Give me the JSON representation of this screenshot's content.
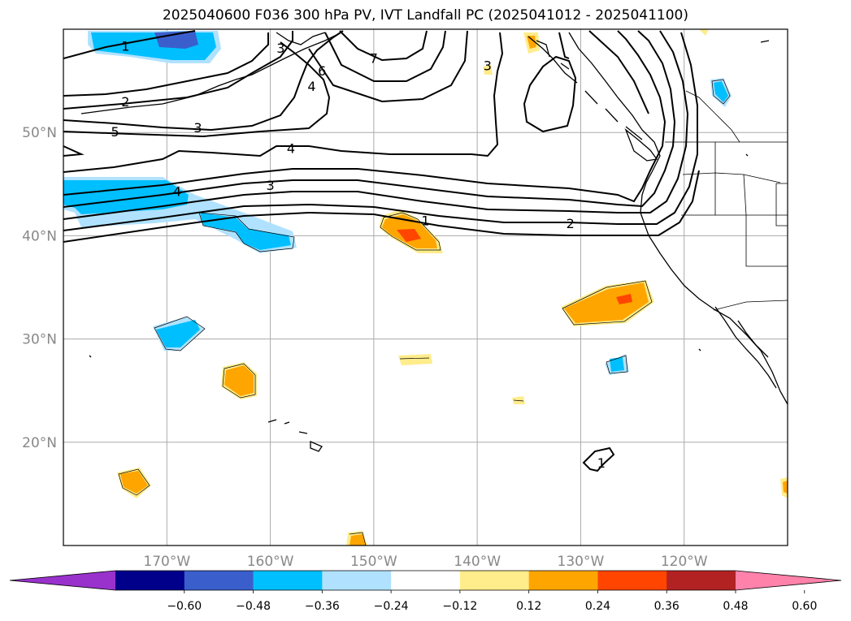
{
  "title": "2025040600 F036 300 hPa PV, IVT Landfall PC (2025041012 - 2025041100)",
  "map": {
    "lon_range": [
      -180,
      -110
    ],
    "lat_range": [
      10,
      60
    ],
    "grid": true,
    "lat_ticks": [
      {
        "value": 50,
        "label": "50°N"
      },
      {
        "value": 40,
        "label": "40°N"
      },
      {
        "value": 30,
        "label": "30°N"
      },
      {
        "value": 20,
        "label": "20°N"
      }
    ],
    "lon_ticks": [
      {
        "value": -170,
        "label": "170°W"
      },
      {
        "value": -160,
        "label": "160°W"
      },
      {
        "value": -150,
        "label": "150°W"
      },
      {
        "value": -140,
        "label": "140°W"
      },
      {
        "value": -130,
        "label": "130°W"
      },
      {
        "value": -120,
        "label": "120°W"
      }
    ]
  },
  "pv_contour_labels": [
    {
      "text": "1",
      "lon": -174,
      "lat": 58.4
    },
    {
      "text": "2",
      "lon": -174,
      "lat": 53.0
    },
    {
      "text": "5",
      "lon": -175,
      "lat": 50.1
    },
    {
      "text": "3",
      "lon": -167,
      "lat": 50.5
    },
    {
      "text": "4",
      "lon": -158,
      "lat": 48.5
    },
    {
      "text": "4",
      "lon": -169,
      "lat": 44.3
    },
    {
      "text": "3",
      "lon": -160,
      "lat": 44.9
    },
    {
      "text": "1",
      "lon": -145,
      "lat": 41.5
    },
    {
      "text": "2",
      "lon": -131,
      "lat": 41.2
    },
    {
      "text": "3",
      "lon": -139,
      "lat": 56.5
    },
    {
      "text": "6",
      "lon": -155,
      "lat": 56.0
    },
    {
      "text": "4",
      "lon": -156,
      "lat": 54.5
    },
    {
      "text": "7",
      "lon": -150,
      "lat": 57.2
    },
    {
      "text": "3",
      "lon": -159,
      "lat": 58.2
    },
    {
      "text": "1",
      "lon": -128,
      "lat": 18.0
    }
  ],
  "colorbar": {
    "colors": [
      "#9932cc",
      "#00008b",
      "#3a5fcd",
      "#00bfff",
      "#b0e2ff",
      "#ffffff",
      "#ffec8b",
      "#ffa500",
      "#ff4500",
      "#b22222",
      "#ff82ab"
    ],
    "ticks": [
      "−0.60",
      "−0.48",
      "−0.36",
      "−0.24",
      "−0.12",
      "0.12",
      "0.24",
      "0.36",
      "0.48",
      "0.60"
    ]
  }
}
